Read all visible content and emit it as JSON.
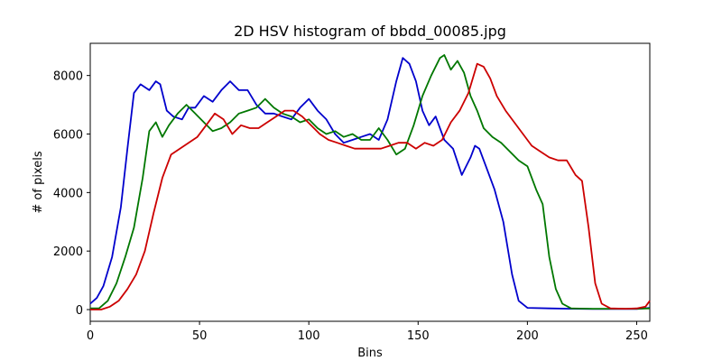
{
  "chart_data": {
    "type": "line",
    "title": "2D HSV histogram of bbdd_00085.jpg",
    "xlabel": "Bins",
    "ylabel": "# of pixels",
    "xlim": [
      0,
      256
    ],
    "ylim": [
      -400,
      9100
    ],
    "xticks": [
      0,
      50,
      100,
      150,
      200,
      250
    ],
    "yticks": [
      0,
      2000,
      4000,
      6000,
      8000
    ],
    "grid": false,
    "legend": "none",
    "series": [
      {
        "color": "#0000cc",
        "points": [
          [
            0,
            200
          ],
          [
            3,
            400
          ],
          [
            6,
            800
          ],
          [
            10,
            1800
          ],
          [
            14,
            3500
          ],
          [
            17,
            5500
          ],
          [
            20,
            7400
          ],
          [
            23,
            7700
          ],
          [
            27,
            7500
          ],
          [
            30,
            7800
          ],
          [
            32,
            7700
          ],
          [
            35,
            6800
          ],
          [
            38,
            6600
          ],
          [
            42,
            6500
          ],
          [
            45,
            6900
          ],
          [
            48,
            6900
          ],
          [
            52,
            7300
          ],
          [
            56,
            7100
          ],
          [
            60,
            7500
          ],
          [
            64,
            7800
          ],
          [
            68,
            7500
          ],
          [
            72,
            7500
          ],
          [
            76,
            7000
          ],
          [
            80,
            6700
          ],
          [
            84,
            6700
          ],
          [
            88,
            6600
          ],
          [
            92,
            6500
          ],
          [
            96,
            6900
          ],
          [
            100,
            7200
          ],
          [
            104,
            6800
          ],
          [
            108,
            6500
          ],
          [
            112,
            6000
          ],
          [
            116,
            5700
          ],
          [
            120,
            5800
          ],
          [
            124,
            5900
          ],
          [
            128,
            6000
          ],
          [
            132,
            5800
          ],
          [
            136,
            6500
          ],
          [
            140,
            7800
          ],
          [
            143,
            8600
          ],
          [
            146,
            8400
          ],
          [
            149,
            7800
          ],
          [
            152,
            6800
          ],
          [
            155,
            6300
          ],
          [
            158,
            6600
          ],
          [
            162,
            5800
          ],
          [
            166,
            5500
          ],
          [
            170,
            4600
          ],
          [
            174,
            5200
          ],
          [
            176,
            5600
          ],
          [
            178,
            5500
          ],
          [
            181,
            4900
          ],
          [
            185,
            4100
          ],
          [
            189,
            3000
          ],
          [
            193,
            1200
          ],
          [
            196,
            300
          ],
          [
            200,
            60
          ],
          [
            210,
            40
          ],
          [
            220,
            30
          ],
          [
            230,
            20
          ],
          [
            240,
            20
          ],
          [
            250,
            20
          ],
          [
            256,
            60
          ]
        ]
      },
      {
        "color": "#007700",
        "points": [
          [
            0,
            40
          ],
          [
            4,
            40
          ],
          [
            8,
            300
          ],
          [
            12,
            900
          ],
          [
            16,
            1800
          ],
          [
            20,
            2800
          ],
          [
            24,
            4500
          ],
          [
            27,
            6100
          ],
          [
            30,
            6400
          ],
          [
            33,
            5900
          ],
          [
            36,
            6300
          ],
          [
            40,
            6700
          ],
          [
            44,
            7000
          ],
          [
            48,
            6700
          ],
          [
            52,
            6400
          ],
          [
            56,
            6100
          ],
          [
            60,
            6200
          ],
          [
            64,
            6400
          ],
          [
            68,
            6700
          ],
          [
            72,
            6800
          ],
          [
            76,
            6900
          ],
          [
            80,
            7200
          ],
          [
            84,
            6900
          ],
          [
            88,
            6700
          ],
          [
            92,
            6600
          ],
          [
            96,
            6400
          ],
          [
            100,
            6500
          ],
          [
            104,
            6200
          ],
          [
            108,
            6000
          ],
          [
            112,
            6100
          ],
          [
            116,
            5900
          ],
          [
            120,
            6000
          ],
          [
            124,
            5800
          ],
          [
            128,
            5800
          ],
          [
            132,
            6200
          ],
          [
            136,
            5800
          ],
          [
            140,
            5300
          ],
          [
            144,
            5500
          ],
          [
            148,
            6300
          ],
          [
            152,
            7300
          ],
          [
            156,
            8000
          ],
          [
            160,
            8600
          ],
          [
            162,
            8700
          ],
          [
            165,
            8200
          ],
          [
            168,
            8500
          ],
          [
            171,
            8100
          ],
          [
            174,
            7300
          ],
          [
            177,
            6800
          ],
          [
            180,
            6200
          ],
          [
            184,
            5900
          ],
          [
            188,
            5700
          ],
          [
            192,
            5400
          ],
          [
            196,
            5100
          ],
          [
            200,
            4900
          ],
          [
            204,
            4100
          ],
          [
            207,
            3600
          ],
          [
            210,
            1800
          ],
          [
            213,
            700
          ],
          [
            216,
            200
          ],
          [
            220,
            40
          ],
          [
            230,
            30
          ],
          [
            240,
            30
          ],
          [
            250,
            30
          ],
          [
            256,
            40
          ]
        ]
      },
      {
        "color": "#cc0000",
        "points": [
          [
            0,
            0
          ],
          [
            5,
            0
          ],
          [
            9,
            100
          ],
          [
            13,
            300
          ],
          [
            17,
            700
          ],
          [
            21,
            1200
          ],
          [
            25,
            2000
          ],
          [
            29,
            3300
          ],
          [
            33,
            4500
          ],
          [
            37,
            5300
          ],
          [
            41,
            5500
          ],
          [
            45,
            5700
          ],
          [
            49,
            5900
          ],
          [
            53,
            6300
          ],
          [
            57,
            6700
          ],
          [
            61,
            6500
          ],
          [
            65,
            6000
          ],
          [
            69,
            6300
          ],
          [
            73,
            6200
          ],
          [
            77,
            6200
          ],
          [
            81,
            6400
          ],
          [
            85,
            6600
          ],
          [
            89,
            6800
          ],
          [
            93,
            6800
          ],
          [
            97,
            6600
          ],
          [
            101,
            6300
          ],
          [
            105,
            6000
          ],
          [
            109,
            5800
          ],
          [
            113,
            5700
          ],
          [
            117,
            5600
          ],
          [
            121,
            5500
          ],
          [
            125,
            5500
          ],
          [
            129,
            5500
          ],
          [
            133,
            5500
          ],
          [
            137,
            5600
          ],
          [
            141,
            5700
          ],
          [
            145,
            5700
          ],
          [
            149,
            5500
          ],
          [
            153,
            5700
          ],
          [
            157,
            5600
          ],
          [
            161,
            5800
          ],
          [
            165,
            6400
          ],
          [
            169,
            6800
          ],
          [
            173,
            7400
          ],
          [
            177,
            8400
          ],
          [
            180,
            8300
          ],
          [
            183,
            7900
          ],
          [
            186,
            7300
          ],
          [
            190,
            6800
          ],
          [
            194,
            6400
          ],
          [
            198,
            6000
          ],
          [
            202,
            5600
          ],
          [
            206,
            5400
          ],
          [
            210,
            5200
          ],
          [
            214,
            5100
          ],
          [
            218,
            5100
          ],
          [
            222,
            4600
          ],
          [
            225,
            4400
          ],
          [
            228,
            2800
          ],
          [
            231,
            900
          ],
          [
            234,
            200
          ],
          [
            238,
            40
          ],
          [
            245,
            30
          ],
          [
            250,
            40
          ],
          [
            254,
            100
          ],
          [
            256,
            300
          ]
        ]
      }
    ]
  }
}
